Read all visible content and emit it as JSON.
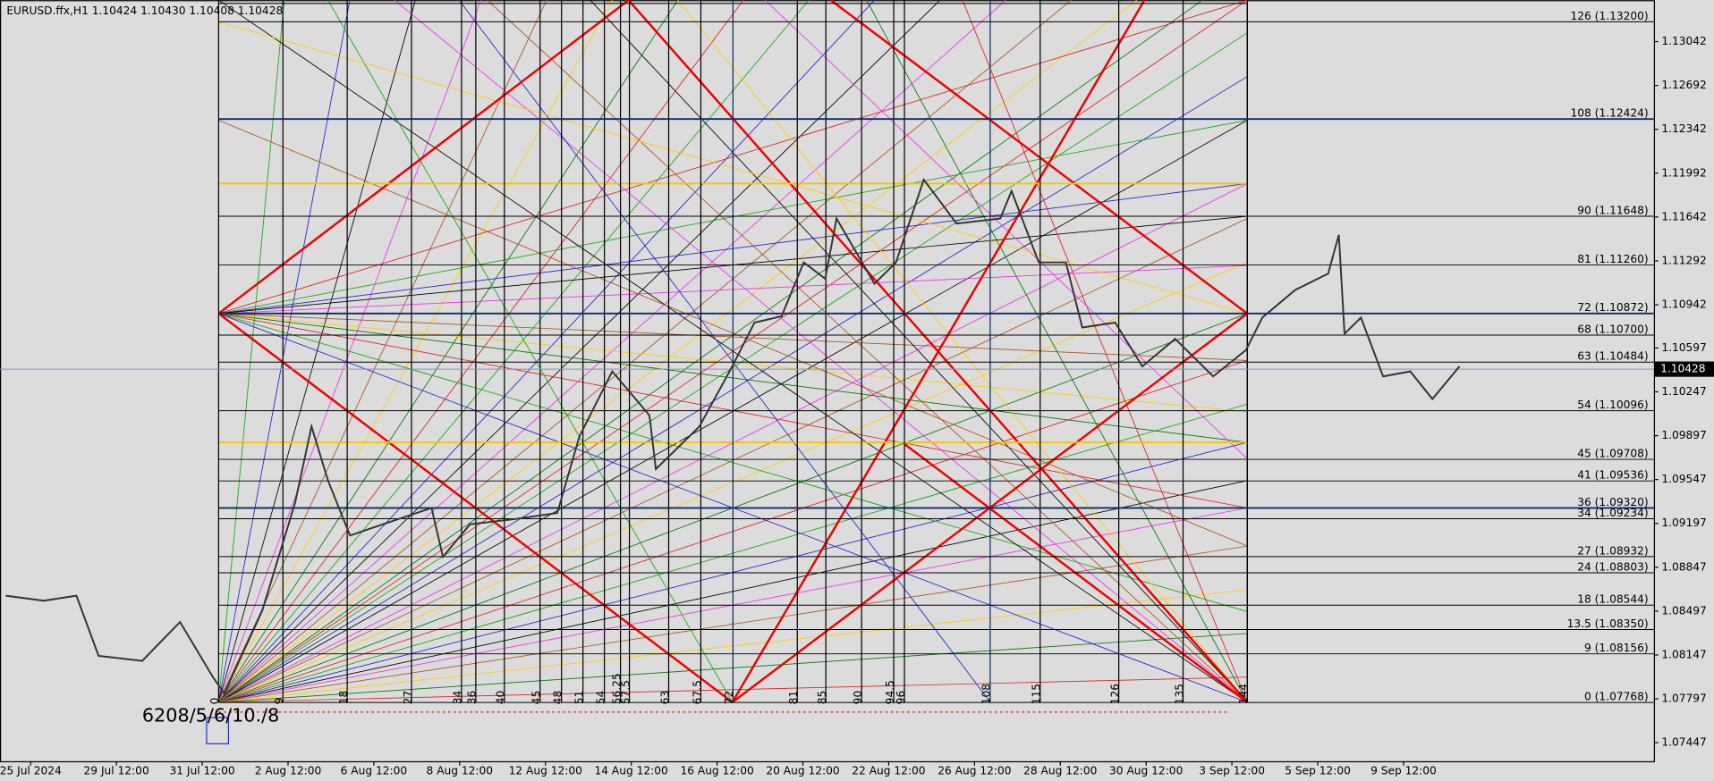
{
  "chart_data": {
    "type": "candlestick",
    "title": "EURUSD.ffx,H1  1.10424 1.10430 1.10408 1.10428",
    "annotation": "6208/5/6/10./8",
    "current_price": 1.10428,
    "ylim": [
      1.07299,
      1.13373
    ],
    "yticks": [
      1.13042,
      1.12692,
      1.12342,
      1.11992,
      1.11642,
      1.11292,
      1.10942,
      1.10597,
      1.10247,
      1.09897,
      1.09547,
      1.09197,
      1.08847,
      1.08497,
      1.08147,
      1.07797,
      1.07447
    ],
    "xlim": [
      -30.6,
      200.9
    ],
    "categories": [
      "25 Jul 2024",
      "29 Jul 12:00",
      "31 Jul 12:00",
      "2 Aug 12:00",
      "6 Aug 12:00",
      "8 Aug 12:00",
      "12 Aug 12:00",
      "14 Aug 12:00",
      "16 Aug 12:00",
      "20 Aug 12:00",
      "22 Aug 12:00",
      "26 Aug 12:00",
      "28 Aug 12:00",
      "30 Aug 12:00",
      "3 Sep 12:00",
      "5 Sep 12:00",
      "9 Sep 12:00"
    ],
    "levels": [
      {
        "value": 1.132,
        "label": "126 (1.13200)"
      },
      {
        "value": 1.12424,
        "label": "108 (1.12424)"
      },
      {
        "value": 1.11648,
        "label": "90 (1.11648)"
      },
      {
        "value": 1.1126,
        "label": "81 (1.11260)"
      },
      {
        "value": 1.10872,
        "label": "72 (1.10872)"
      },
      {
        "value": 1.107,
        "label": "68 (1.10700)"
      },
      {
        "value": 1.10484,
        "label": "63 (1.10484)"
      },
      {
        "value": 1.10096,
        "label": "54 (1.10096)"
      },
      {
        "value": 1.09708,
        "label": "45 (1.09708)"
      },
      {
        "value": 1.09536,
        "label": "41 (1.09536)"
      },
      {
        "value": 1.0932,
        "label": "36 (1.09320)"
      },
      {
        "value": 1.09234,
        "label": "34 (1.09234)"
      },
      {
        "value": 1.08932,
        "label": "27 (1.08932)"
      },
      {
        "value": 1.08803,
        "label": "24 (1.08803)"
      },
      {
        "value": 1.08544,
        "label": "18 (1.08544)"
      },
      {
        "value": 1.0835,
        "label": "13.5 (1.08350)"
      },
      {
        "value": 1.08156,
        "label": "9 (1.08156)"
      },
      {
        "value": 1.07768,
        "label": "0 (1.07768)"
      }
    ],
    "time_marks": [
      0,
      9,
      18,
      27,
      34,
      36,
      40,
      45,
      48,
      51,
      54,
      56.25,
      57.5,
      63,
      67.5,
      72,
      81,
      85,
      90,
      94.5,
      96,
      108,
      115,
      126,
      135,
      144
    ],
    "series": [
      {
        "name": "EURUSD",
        "color": "#333333",
        "x": [
          -29.8,
          -24.5,
          -19.9,
          -16.8,
          -10.7,
          -5.4,
          -0.8,
          0.8,
          6.1,
          10.7,
          13,
          15.3,
          18.4,
          23,
          29.8,
          31.4,
          35.2,
          41.3,
          47.4,
          50.5,
          55.1,
          60.3,
          61.2,
          67.3,
          71.9,
          75,
          78.8,
          81.9,
          84.9,
          86.5,
          91.8,
          94.8,
          98.7,
          103.3,
          109.4,
          111,
          114.8,
          118.6,
          120.9,
          125.5,
          129.3,
          133.9,
          139.2,
          143.8,
          146.1,
          150.7,
          155.3,
          156.8,
          157.6,
          159.9,
          163,
          166.8,
          169.9,
          173.7
        ],
        "values": [
          1.0862,
          1.0858,
          1.0862,
          1.0814,
          1.081,
          1.0841,
          1.0797,
          1.0784,
          1.085,
          1.0936,
          1.0997,
          1.0954,
          1.091,
          1.0919,
          1.0932,
          1.0893,
          1.0919,
          1.0923,
          1.0928,
          1.0989,
          1.1041,
          1.1006,
          1.0963,
          1.0997,
          1.1045,
          1.108,
          1.1085,
          1.1128,
          1.1115,
          1.1163,
          1.1111,
          1.1128,
          1.1194,
          1.1159,
          1.1163,
          1.1185,
          1.1128,
          1.1128,
          1.1076,
          1.108,
          1.1045,
          1.1067,
          1.1037,
          1.1058,
          1.1084,
          1.1106,
          1.1119,
          1.115,
          1.1071,
          1.1084,
          1.1037,
          1.1041,
          1.1019,
          1.1045
        ]
      }
    ]
  }
}
